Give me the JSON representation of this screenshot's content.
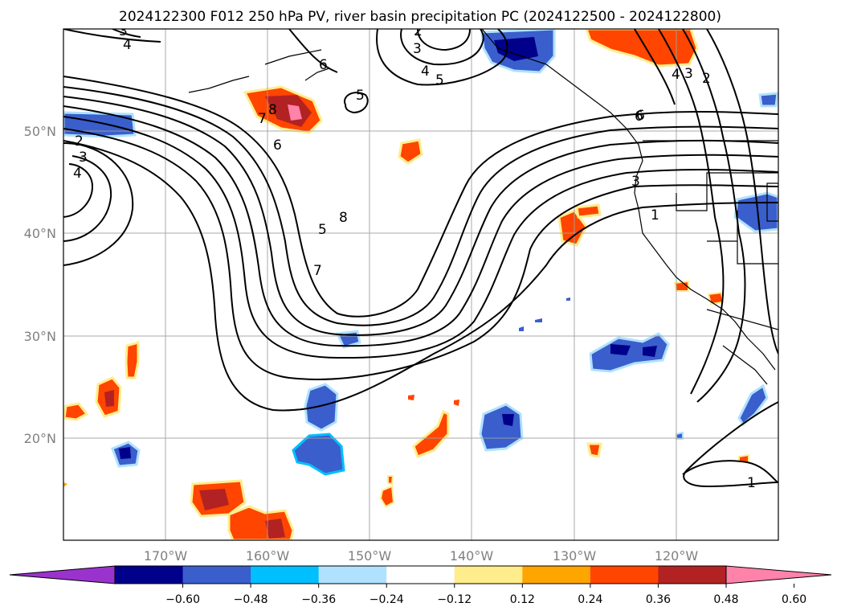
{
  "title": "2024122300 F012 250 hPa PV, river basin precipitation PC (2024122500 - 2024122800)",
  "map": {
    "lon_range": [
      -180,
      -110
    ],
    "lat_range": [
      10,
      60
    ],
    "lon_ticks": [
      -170,
      -160,
      -150,
      -140,
      -130,
      -120
    ],
    "lat_ticks": [
      20,
      30,
      40,
      50
    ],
    "lon_tick_labels": [
      "170°W",
      "160°W",
      "150°W",
      "140°W",
      "130°W",
      "120°W"
    ],
    "lat_tick_labels": [
      "20°N",
      "30°N",
      "40°N",
      "50°N"
    ],
    "gridlines": true,
    "contour_labels": [
      "3",
      "4",
      "2",
      "3",
      "4",
      "6",
      "2",
      "3",
      "4",
      "5",
      "5",
      "7",
      "8",
      "6",
      "5",
      "8",
      "7",
      "6",
      "2",
      "3",
      "4",
      "6",
      "3",
      "1",
      "1"
    ]
  },
  "colorbar": {
    "ticks": [
      "−0.60",
      "−0.48",
      "−0.36",
      "−0.24",
      "−0.12",
      "0.12",
      "0.24",
      "0.36",
      "0.48",
      "0.60"
    ],
    "colors": [
      "#9a32cd",
      "#00008b",
      "#3a5fcd",
      "#00bfff",
      "#b0e2ff",
      "#ffffff",
      "#ffec8b",
      "#ffa500",
      "#ff4500",
      "#b22222",
      "#ff82ab"
    ]
  }
}
